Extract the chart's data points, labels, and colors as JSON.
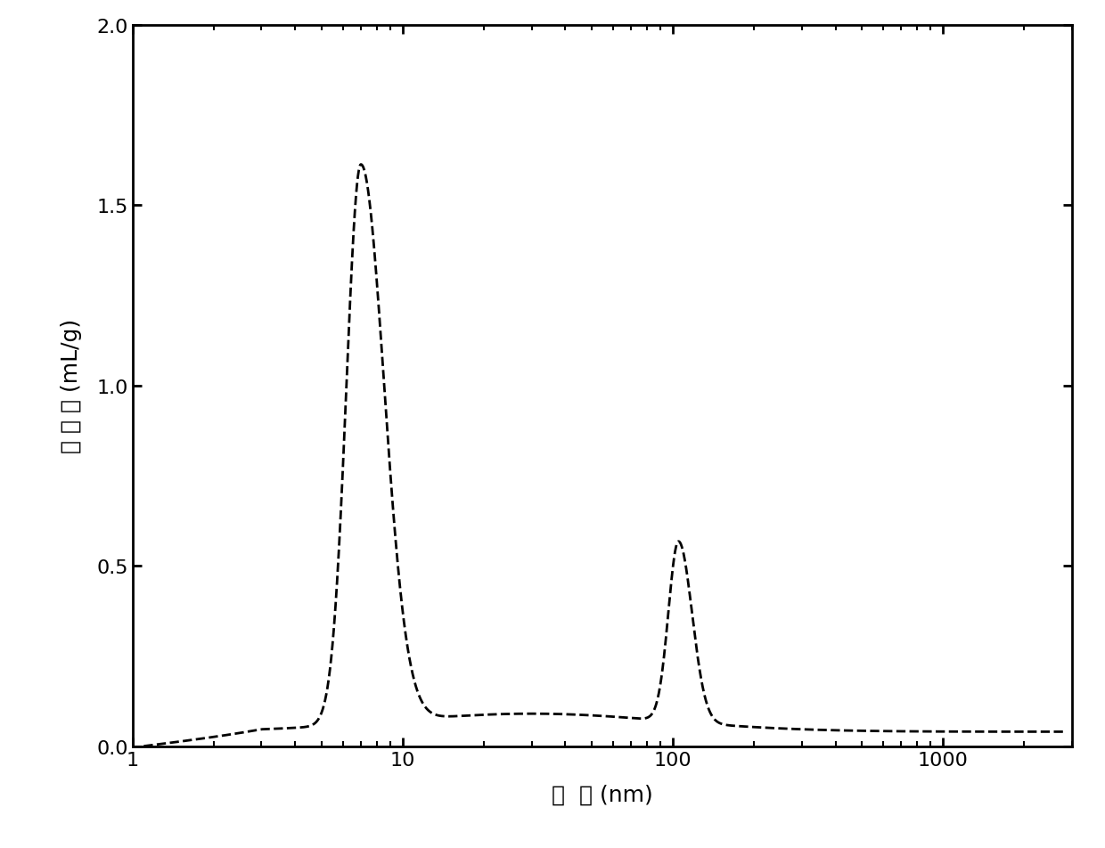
{
  "xlabel": "孔  径 (nm)",
  "ylabel": "压 汞 量 (mL/g)",
  "xlim": [
    1,
    3000
  ],
  "ylim": [
    0,
    2.0
  ],
  "yticks": [
    0.0,
    0.5,
    1.0,
    1.5,
    2.0
  ],
  "line_color": "#000000",
  "line_style": "--",
  "line_width": 2.0,
  "background_color": "#ffffff",
  "peak1_x": 7.0,
  "peak1_y": 1.55,
  "peak2_x": 105.0,
  "peak2_y": 0.5,
  "xlabel_fontsize": 18,
  "ylabel_fontsize": 18,
  "tick_fontsize": 16
}
